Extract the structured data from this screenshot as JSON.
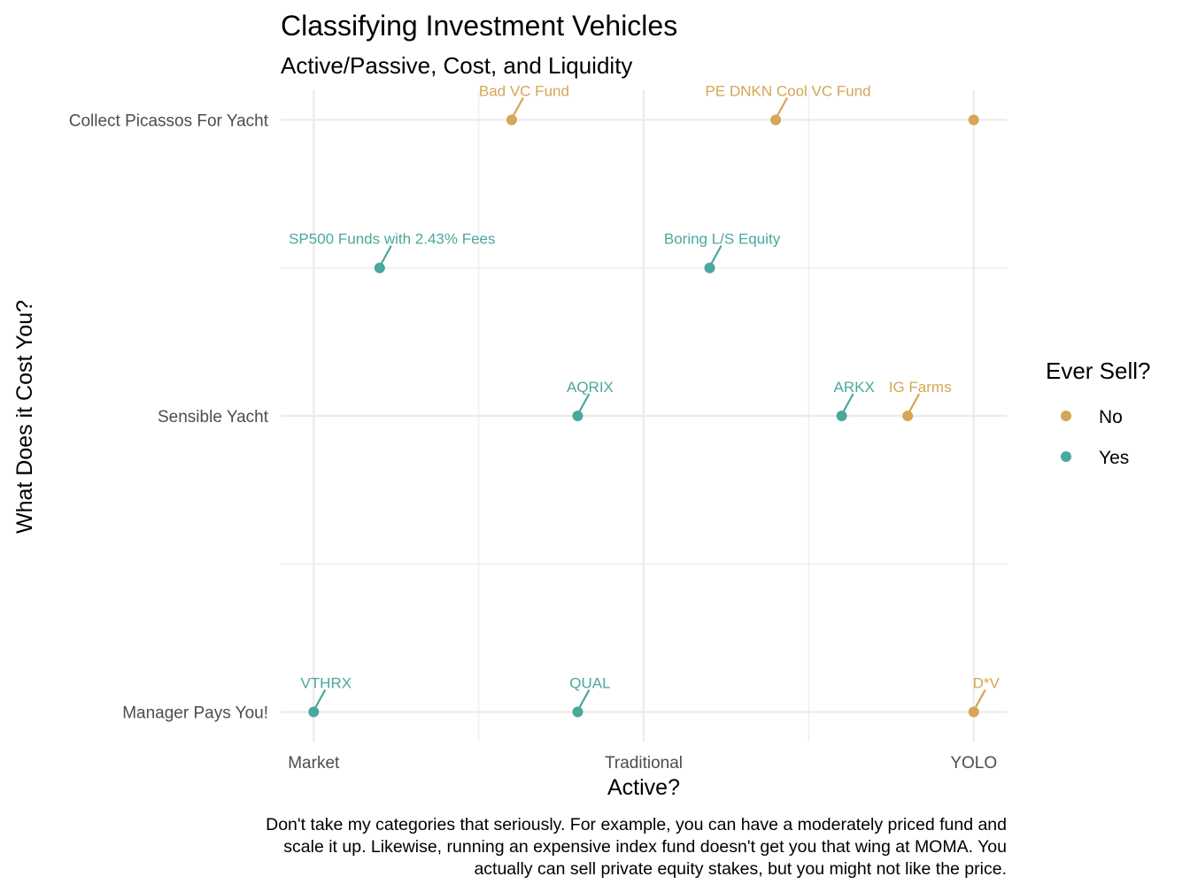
{
  "chart_data": {
    "type": "scatter",
    "title": "Classifying Investment Vehicles",
    "subtitle": "Active/Passive, Cost, and Liquidity",
    "xlabel": "Active?",
    "ylabel": "What Does it Cost You?",
    "x_ticks": [
      "Market",
      "Traditional",
      "YOLO"
    ],
    "y_ticks": [
      "Manager Pays You!",
      "Sensible Yacht",
      "Collect Picassos For Yacht"
    ],
    "xlim": [
      0.9,
      3.1
    ],
    "ylim": [
      0.9,
      3.1
    ],
    "grid": true,
    "legend": {
      "title": "Ever Sell?",
      "position": "right",
      "entries": [
        {
          "name": "No",
          "color": "#D4A656"
        },
        {
          "name": "Yes",
          "color": "#4AA89C"
        }
      ]
    },
    "points": [
      {
        "label": "Bad VC Fund",
        "x": 1.6,
        "y": 3.0,
        "group": "No"
      },
      {
        "label": "PE DNKN Cool VC Fund",
        "x": 2.4,
        "y": 3.0,
        "group": "No"
      },
      {
        "label": "",
        "x": 3.0,
        "y": 3.0,
        "group": "No"
      },
      {
        "label": "SP500 Funds with 2.43% Fees",
        "x": 1.2,
        "y": 2.5,
        "group": "Yes"
      },
      {
        "label": "Boring L/S Equity",
        "x": 2.2,
        "y": 2.5,
        "group": "Yes"
      },
      {
        "label": "AQRIX",
        "x": 1.8,
        "y": 2.0,
        "group": "Yes"
      },
      {
        "label": "ARKX",
        "x": 2.6,
        "y": 2.0,
        "group": "Yes"
      },
      {
        "label": "IG Farms",
        "x": 2.8,
        "y": 2.0,
        "group": "No"
      },
      {
        "label": "VTHRX",
        "x": 1.0,
        "y": 1.0,
        "group": "Yes"
      },
      {
        "label": "QUAL",
        "x": 1.8,
        "y": 1.0,
        "group": "Yes"
      },
      {
        "label": "D*V",
        "x": 3.0,
        "y": 1.0,
        "group": "No"
      }
    ],
    "caption": [
      "Don't take my categories that seriously. For example, you can have a moderately priced fund and",
      "scale it up. Likewise, running an expensive index fund doesn't get you that wing at MOMA. You",
      "actually can sell private equity stakes, but you might not like the price."
    ]
  }
}
